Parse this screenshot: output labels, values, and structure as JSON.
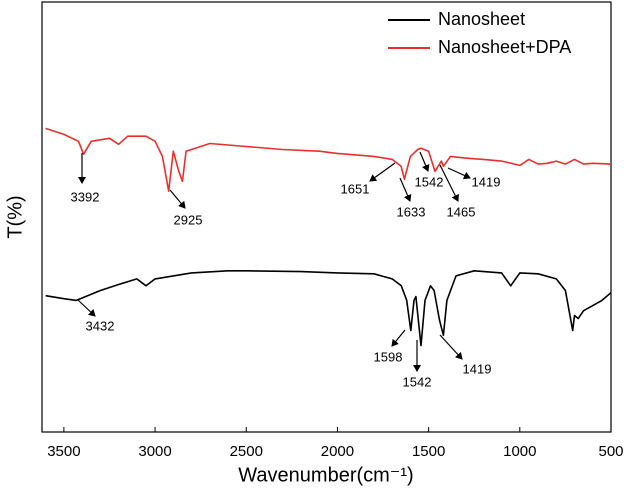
{
  "chart_data": {
    "type": "line",
    "x_label": "Wavenumber(cm⁻¹)",
    "y_label": "T(%)",
    "xlim": [
      3620,
      500
    ],
    "ylim": [
      0,
      100
    ],
    "xticks": [
      3500,
      3000,
      2500,
      2000,
      1500,
      1000,
      500
    ],
    "legend": "top-right",
    "series": [
      {
        "name": "Nanosheet",
        "color": "#000000",
        "x": [
          3600,
          3500,
          3432,
          3300,
          3200,
          3100,
          3050,
          3000,
          2800,
          2600,
          2500,
          2200,
          2000,
          1800,
          1700,
          1650,
          1620,
          1598,
          1580,
          1570,
          1542,
          1520,
          1490,
          1470,
          1440,
          1419,
          1400,
          1350,
          1250,
          1100,
          1050,
          1000,
          900,
          800,
          750,
          730,
          710,
          700,
          680,
          650,
          600,
          550,
          500
        ],
        "values": [
          31.7,
          31.0,
          30.6,
          32.9,
          34.3,
          35.6,
          34.0,
          35.6,
          37.0,
          37.5,
          37.5,
          37.3,
          37.0,
          36.8,
          35.6,
          34.0,
          30.6,
          23.6,
          30.6,
          31.5,
          20.1,
          30.6,
          34.0,
          32.9,
          25.9,
          22.5,
          30.6,
          36.3,
          37.5,
          37.0,
          34.0,
          37.0,
          36.8,
          35.6,
          32.9,
          28.2,
          23.6,
          27.1,
          26.4,
          28.2,
          29.4,
          30.6,
          32.4
        ],
        "annotations": [
          "3432",
          "1598",
          "1542",
          "1419"
        ]
      },
      {
        "name": "Nanosheet+DPA",
        "color": "#e8312f",
        "x": [
          3600,
          3500,
          3420,
          3392,
          3350,
          3250,
          3200,
          3150,
          3050,
          3000,
          2960,
          2925,
          2900,
          2870,
          2850,
          2830,
          2700,
          2500,
          2300,
          2100,
          2000,
          1800,
          1700,
          1651,
          1633,
          1600,
          1560,
          1542,
          1500,
          1465,
          1430,
          1419,
          1380,
          1300,
          1200,
          1100,
          1000,
          950,
          900,
          850,
          800,
          750,
          700,
          650,
          600,
          500
        ],
        "values": [
          70.6,
          69.2,
          67.6,
          64.6,
          67.6,
          68.3,
          66.9,
          68.8,
          68.8,
          67.6,
          64.1,
          56.0,
          65.3,
          60.6,
          58.3,
          65.3,
          67.1,
          66.4,
          65.7,
          65.3,
          64.8,
          64.1,
          63.4,
          61.8,
          58.8,
          64.1,
          65.7,
          66.0,
          65.3,
          60.6,
          63.0,
          61.8,
          64.1,
          63.7,
          63.4,
          63.0,
          62.0,
          63.4,
          62.3,
          62.5,
          63.0,
          62.3,
          63.4,
          62.3,
          62.5,
          62.3
        ],
        "annotations": [
          "3392",
          "2925",
          "1651",
          "1633",
          "1542",
          "1465",
          "1419"
        ]
      }
    ]
  }
}
